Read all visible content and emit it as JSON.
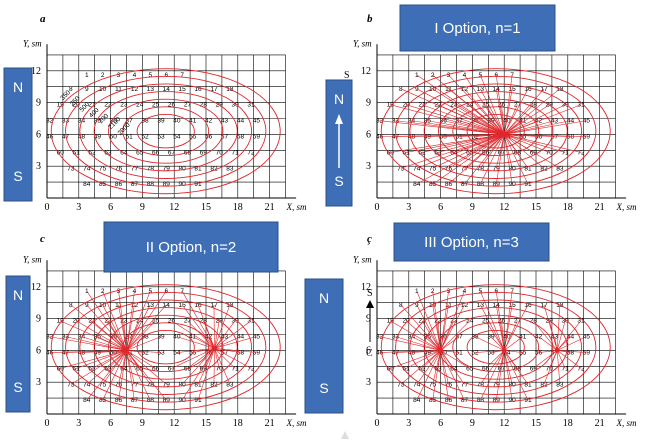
{
  "panels": [
    {
      "letter": "a",
      "option_label": "",
      "centers": [],
      "compass": {
        "top": "N",
        "bottom": "S",
        "arrow": false
      }
    },
    {
      "letter": "b",
      "option_label": "I Option,  n=1",
      "centers": [
        [
          12,
          6
        ]
      ],
      "compass": {
        "top": "N",
        "bottom": "S",
        "arrow": true
      }
    },
    {
      "letter": "c",
      "option_label": "II Option, n=2",
      "centers": [
        [
          7.5,
          6
        ],
        [
          15.8,
          6.2
        ]
      ],
      "compass": {
        "top": "N",
        "bottom": "S",
        "arrow": false
      }
    },
    {
      "letter": "ç",
      "option_label": "III Option, n=3",
      "centers": [
        [
          6,
          6
        ],
        [
          12,
          6
        ],
        [
          17,
          6
        ]
      ],
      "compass": {
        "top": "N",
        "bottom": "S",
        "arrow": false
      }
    }
  ],
  "axis": {
    "y_label": "Y, sm",
    "x_label": "X, sm",
    "y_ticks": [
      "3",
      "6",
      "9",
      "12"
    ],
    "x_ticks": [
      "0",
      "3",
      "6",
      "9",
      "12",
      "15",
      "18",
      "21"
    ],
    "origin": "0"
  },
  "compass_labels": {
    "n": "N",
    "s": "S",
    "s_small": "S",
    "c_small": "C"
  },
  "cell_rows": [
    {
      "y": 11.6,
      "x0": 3,
      "nums": [
        "1",
        "2",
        "3",
        "4",
        "5",
        "6",
        "7"
      ]
    },
    {
      "y": 10.3,
      "x0": 1.5,
      "nums": [
        "8",
        "9",
        "10",
        "11",
        "12",
        "13",
        "14",
        "15",
        "16",
        "17",
        "18"
      ]
    },
    {
      "y": 8.8,
      "x0": 0.5,
      "nums": [
        "19",
        "20",
        "21",
        "22",
        "23",
        "24",
        "25",
        "26",
        "27",
        "28",
        "29",
        "30",
        "31"
      ]
    },
    {
      "y": 7.3,
      "x0": -0.5,
      "nums": [
        "32",
        "33",
        "34",
        "35",
        "36",
        "37",
        "38",
        "39",
        "40",
        "41",
        "42",
        "43",
        "44",
        "45"
      ]
    },
    {
      "y": 5.8,
      "x0": -0.5,
      "nums": [
        "46",
        "47",
        "48",
        "49",
        "50",
        "51",
        "52",
        "53",
        "54",
        "55",
        "56",
        "57",
        "58",
        "59"
      ]
    },
    {
      "y": 4.3,
      "x0": 0.5,
      "nums": [
        "60",
        "61",
        "62",
        "63",
        "64",
        "65",
        "66",
        "67",
        "68",
        "69",
        "70",
        "71",
        "72"
      ]
    },
    {
      "y": 2.8,
      "x0": 1.5,
      "nums": [
        "73",
        "74",
        "75",
        "76",
        "77",
        "78",
        "79",
        "80",
        "81",
        "82",
        "83"
      ]
    },
    {
      "y": 1.3,
      "x0": 3,
      "nums": [
        "84",
        "85",
        "86",
        "87",
        "88",
        "89",
        "90",
        "91"
      ]
    }
  ],
  "iso_values": [
    "350",
    "250",
    "500",
    "400",
    "200",
    "2100",
    "2000"
  ]
}
